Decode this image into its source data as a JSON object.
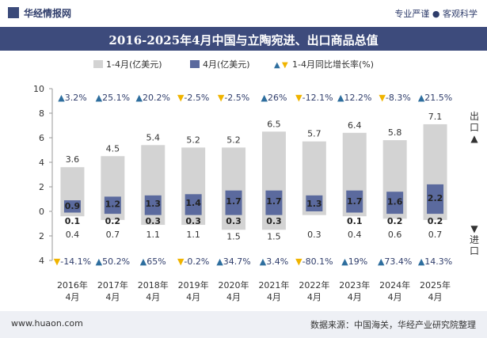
{
  "header": {
    "brand": "华经情报网",
    "tagline": "专业严谨 ● 客观科学"
  },
  "chart_data": {
    "type": "bar",
    "title": "2016-2025年4月中国与立陶宛进、出口商品总值",
    "legend": [
      "1-4月(亿美元)",
      "4月(亿美元)",
      "1-4月同比增长率(%)"
    ],
    "categories": [
      "2016年4月",
      "2017年4月",
      "2018年4月",
      "2019年4月",
      "2020年4月",
      "2021年4月",
      "2022年4月",
      "2023年4月",
      "2024年4月",
      "2025年4月"
    ],
    "series": [
      {
        "name": "1-4月(亿美元)",
        "direction": "出口",
        "values": [
          3.6,
          4.5,
          5.4,
          5.2,
          5.2,
          6.5,
          5.7,
          6.4,
          5.8,
          7.1
        ]
      },
      {
        "name": "4月(亿美元)",
        "direction": "出口",
        "values": [
          0.9,
          1.2,
          1.3,
          1.4,
          1.7,
          1.7,
          1.3,
          1.7,
          1.6,
          2.2
        ]
      },
      {
        "name": "1-4月(亿美元)",
        "direction": "进口",
        "values": [
          0.4,
          0.7,
          1.1,
          1.1,
          1.5,
          1.5,
          0.3,
          0.4,
          0.6,
          0.7
        ]
      },
      {
        "name": "4月(亿美元)",
        "direction": "进口",
        "values": [
          0.1,
          0.2,
          0.3,
          0.3,
          0.3,
          0.3,
          0.0,
          0.1,
          0.2,
          0.2
        ]
      }
    ],
    "growth_export": [
      "3.2%",
      "25.1%",
      "20.2%",
      "-2.5%",
      "-2.5%",
      "26%",
      "-12.1%",
      "12.2%",
      "-8.3%",
      "21.5%"
    ],
    "growth_import": [
      "-14.1%",
      "50.2%",
      "65%",
      "-0.2%",
      "34.7%",
      "3.4%",
      "-80.1%",
      "19%",
      "73.4%",
      "14.3%"
    ],
    "export_monthly_labels": [
      "0.9",
      "1.2",
      "1.3",
      "1.4",
      "1.7",
      "1.7",
      "1.3",
      "1.7",
      "1.6",
      "2.2"
    ],
    "import_monthly_labels": [
      "0.1",
      "0.2",
      "0.3",
      "0.3",
      "0.3",
      "0.3",
      "",
      "0.1",
      "0.2",
      "0.2"
    ],
    "y_ticks_top": [
      "10",
      "8",
      "6",
      "4",
      "2",
      "0"
    ],
    "y_ticks_bottom": [
      "2",
      "4"
    ],
    "ylim": [
      -4,
      10
    ],
    "side_labels": {
      "export": "出口",
      "import": "进口"
    },
    "colors": {
      "annual": "#d3d3d3",
      "monthly": "#5b6a9e",
      "up": "#2e6e9e",
      "down": "#f0b400"
    }
  },
  "footer": {
    "url": "www.huaon.com",
    "source": "数据来源：中国海关，华经产业研究院整理"
  }
}
